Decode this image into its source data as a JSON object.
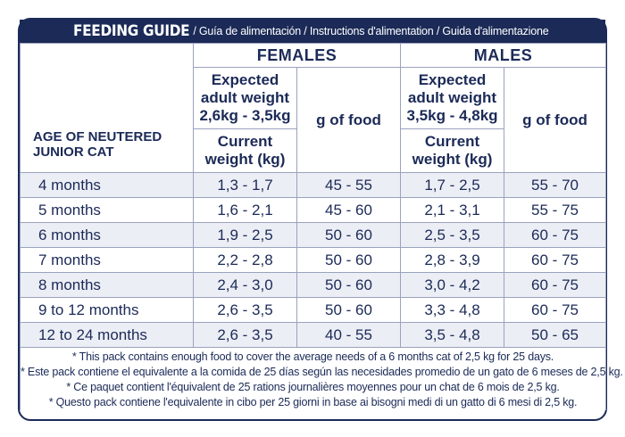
{
  "header": {
    "title": "FEEDING GUIDE",
    "subtitle": "/ Guía de alimentación / Instructions d'alimentation / Guida d'alimentazione"
  },
  "table": {
    "females_label": "FEMALES",
    "males_label": "MALES",
    "females_expected": [
      "Expected",
      "adult weight",
      "2,6kg - 3,5kg"
    ],
    "males_expected": [
      "Expected",
      "adult weight",
      "3,5kg - 4,8kg"
    ],
    "food_label": "g of food",
    "current_weight_label": [
      "Current",
      "weight (kg)"
    ],
    "age_label": [
      "AGE OF NEUTERED",
      "JUNIOR CAT"
    ],
    "rows": [
      {
        "age": "4 months",
        "f_weight": "1,3 - 1,7",
        "f_food": "45 - 55",
        "m_weight": "1,7 - 2,5",
        "m_food": "55 - 70"
      },
      {
        "age": "5 months",
        "f_weight": "1,6 - 2,1",
        "f_food": "45 - 60",
        "m_weight": "2,1 - 3,1",
        "m_food": "55 - 75"
      },
      {
        "age": "6 months",
        "f_weight": "1,9 - 2,5",
        "f_food": "50 - 60",
        "m_weight": "2,5 - 3,5",
        "m_food": "60 - 75"
      },
      {
        "age": "7 months",
        "f_weight": "2,2 - 2,8",
        "f_food": "50 - 60",
        "m_weight": "2,8 - 3,9",
        "m_food": "60 - 75"
      },
      {
        "age": "8 months",
        "f_weight": "2,4 - 3,0",
        "f_food": "50 - 60",
        "m_weight": "3,0 - 4,2",
        "m_food": "60 - 75"
      },
      {
        "age": "9 to 12 months",
        "f_weight": "2,6 - 3,5",
        "f_food": "50 - 60",
        "m_weight": "3,3 - 4,8",
        "m_food": "60 - 75"
      },
      {
        "age": "12 to 24 months",
        "f_weight": "2,6 - 3,5",
        "f_food": "40 - 55",
        "m_weight": "3,5 - 4,8",
        "m_food": "50 - 65"
      }
    ]
  },
  "notes": [
    "* This pack contains enough food to cover the average needs of a  6 months cat of 2,5 kg for 25 days.",
    "* Este pack contiene el equivalente a la comida de 25 días según las necesidades promedio de un gato de 6 meses de 2,5 kg.",
    "* Ce paquet contient l'équivalent de 25 rations journalières moyennes pour un chat de 6 mois de 2,5 kg.",
    "* Questo pack contiene l'equivalente in cibo per 25 giorni in base ai bisogni medi di un gatto di 6 mesi di 2,5 kg."
  ],
  "colors": {
    "navy": "#1b2a57",
    "row_shade": "#eceef5",
    "grid": "#9aa3bd"
  }
}
